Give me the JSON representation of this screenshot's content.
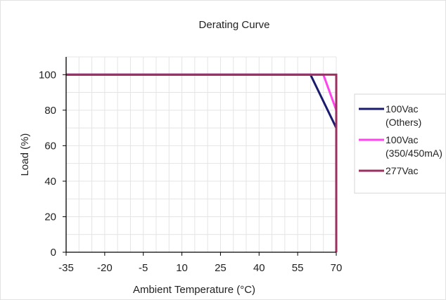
{
  "chart_data": {
    "type": "line",
    "title": "Derating Curve",
    "xlabel": "Ambient Temperature (°C)",
    "ylabel": "Load (%)",
    "x_ticks": [
      "-35",
      "-20",
      "-5",
      "10",
      "25",
      "40",
      "55",
      "70"
    ],
    "x_tick_values": [
      -35,
      -20,
      -5,
      10,
      25,
      40,
      55,
      70
    ],
    "xlim": [
      -35,
      70
    ],
    "y_ticks": [
      "0",
      "20",
      "40",
      "60",
      "80",
      "100"
    ],
    "y_tick_values": [
      0,
      20,
      40,
      60,
      80,
      100
    ],
    "ylim": [
      0,
      110
    ],
    "grid": true,
    "legend_position": "right",
    "series": [
      {
        "name": "100Vac (Others)",
        "legend_lines": [
          "100Vac",
          "(Others)"
        ],
        "color": "#1a1a6e",
        "points": [
          [
            -35,
            100
          ],
          [
            60,
            100
          ],
          [
            70,
            70
          ],
          [
            70,
            0
          ]
        ]
      },
      {
        "name": "100Vac (350/450mA)",
        "legend_lines": [
          "100Vac",
          "(350/450mA)"
        ],
        "color": "#ff44ee",
        "points": [
          [
            -35,
            100
          ],
          [
            65,
            100
          ],
          [
            70,
            80
          ],
          [
            70,
            0
          ]
        ]
      },
      {
        "name": "277Vac",
        "legend_lines": [
          "277Vac"
        ],
        "color": "#9b2f5e",
        "points": [
          [
            -35,
            100
          ],
          [
            70,
            100
          ],
          [
            70,
            0
          ]
        ]
      }
    ]
  }
}
